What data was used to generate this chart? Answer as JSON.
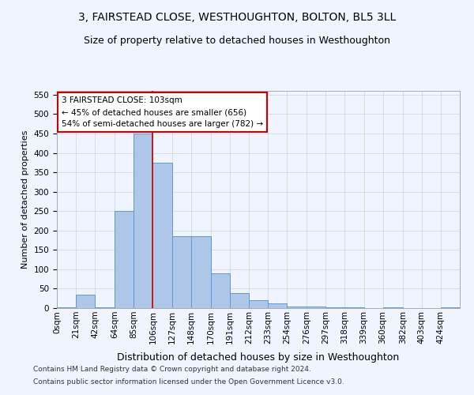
{
  "title": "3, FAIRSTEAD CLOSE, WESTHOUGHTON, BOLTON, BL5 3LL",
  "subtitle": "Size of property relative to detached houses in Westhoughton",
  "xlabel": "Distribution of detached houses by size in Westhoughton",
  "ylabel": "Number of detached properties",
  "footer_line1": "Contains HM Land Registry data © Crown copyright and database right 2024.",
  "footer_line2": "Contains public sector information licensed under the Open Government Licence v3.0.",
  "bin_edges": [
    0,
    21,
    42,
    64,
    85,
    106,
    127,
    148,
    170,
    191,
    212,
    233,
    254,
    276,
    297,
    318,
    339,
    360,
    382,
    403,
    424,
    445
  ],
  "bar_heights": [
    2,
    35,
    2,
    250,
    450,
    375,
    185,
    185,
    90,
    38,
    20,
    12,
    5,
    5,
    2,
    2,
    0,
    3,
    0,
    0,
    2
  ],
  "tick_labels": [
    "0sqm",
    "21sqm",
    "42sqm",
    "64sqm",
    "85sqm",
    "106sqm",
    "127sqm",
    "148sqm",
    "170sqm",
    "191sqm",
    "212sqm",
    "233sqm",
    "254sqm",
    "276sqm",
    "297sqm",
    "318sqm",
    "339sqm",
    "360sqm",
    "382sqm",
    "403sqm",
    "424sqm"
  ],
  "bar_color": "#aec6e8",
  "bar_edge_color": "#5b9bd5",
  "grid_color": "#c8d4e8",
  "reference_line_x": 106,
  "annotation_line1": "3 FAIRSTEAD CLOSE: 103sqm",
  "annotation_line2": "← 45% of detached houses are smaller (656)",
  "annotation_line3": "54% of semi-detached houses are larger (782) →",
  "annotation_box_color": "#ffffff",
  "annotation_border_color": "#cc0000",
  "ylim_max": 560,
  "yticks": [
    0,
    50,
    100,
    150,
    200,
    250,
    300,
    350,
    400,
    450,
    500,
    550
  ],
  "title_fontsize": 10,
  "subtitle_fontsize": 9,
  "xlabel_fontsize": 9,
  "ylabel_fontsize": 8,
  "tick_fontsize": 7.5,
  "annotation_fontsize": 7.5,
  "footer_fontsize": 6.5,
  "background_color": "#f0f4ff"
}
